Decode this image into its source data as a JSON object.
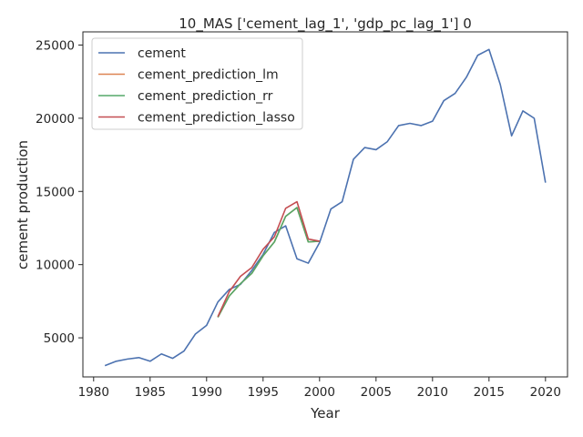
{
  "chart_data": {
    "type": "line",
    "title": "10_MAS ['cement_lag_1', 'gdp_pc_lag_1'] 0",
    "xlabel": "Year",
    "ylabel": "cement production",
    "xlim": [
      1979.05,
      2021.95
    ],
    "ylim": [
      2330,
      25900
    ],
    "xticks": [
      1980,
      1985,
      1990,
      1995,
      2000,
      2005,
      2010,
      2015,
      2020
    ],
    "yticks": [
      5000,
      10000,
      15000,
      20000,
      25000
    ],
    "grid": false,
    "legend_position": "top-left",
    "series": [
      {
        "name": "cement",
        "color": "#4c72b0",
        "x": [
          1981,
          1982,
          1983,
          1984,
          1985,
          1986,
          1987,
          1988,
          1989,
          1990,
          1991,
          1992,
          1993,
          1994,
          1995,
          1996,
          1997,
          1998,
          1999,
          2000,
          2001,
          2002,
          2003,
          2004,
          2005,
          2006,
          2007,
          2008,
          2009,
          2010,
          2011,
          2012,
          2013,
          2014,
          2015,
          2016,
          2017,
          2018,
          2019,
          2020
        ],
        "y": [
          3100,
          3400,
          3550,
          3650,
          3400,
          3900,
          3600,
          4100,
          5250,
          5850,
          7450,
          8300,
          8650,
          9600,
          10700,
          12200,
          12650,
          10400,
          10100,
          11500,
          13800,
          14300,
          17200,
          18000,
          17850,
          18400,
          19500,
          19650,
          19500,
          19800,
          21200,
          21700,
          22800,
          24300,
          24700,
          22300,
          18800,
          20500,
          20000,
          15600
        ]
      },
      {
        "name": "cement_prediction_lm",
        "color": "#dd8452",
        "x": [
          1991,
          1992,
          1993,
          1994,
          1995,
          1996,
          1997,
          1998,
          1999,
          2000
        ],
        "y": [
          6400,
          7850,
          8700,
          9400,
          10600,
          11550,
          13300,
          13900,
          11550,
          11600
        ]
      },
      {
        "name": "cement_prediction_rr",
        "color": "#55a868",
        "x": [
          1991,
          1992,
          1993,
          1994,
          1995,
          1996,
          1997,
          1998,
          1999,
          2000
        ],
        "y": [
          6400,
          7850,
          8700,
          9400,
          10600,
          11550,
          13300,
          13900,
          11550,
          11600
        ]
      },
      {
        "name": "cement_prediction_lasso",
        "color": "#c44e52",
        "x": [
          1991,
          1992,
          1993,
          1994,
          1995,
          1996,
          1997,
          1998,
          1999,
          2000
        ],
        "y": [
          6450,
          8150,
          9200,
          9800,
          11050,
          11900,
          13850,
          14300,
          11750,
          11600
        ]
      }
    ]
  }
}
